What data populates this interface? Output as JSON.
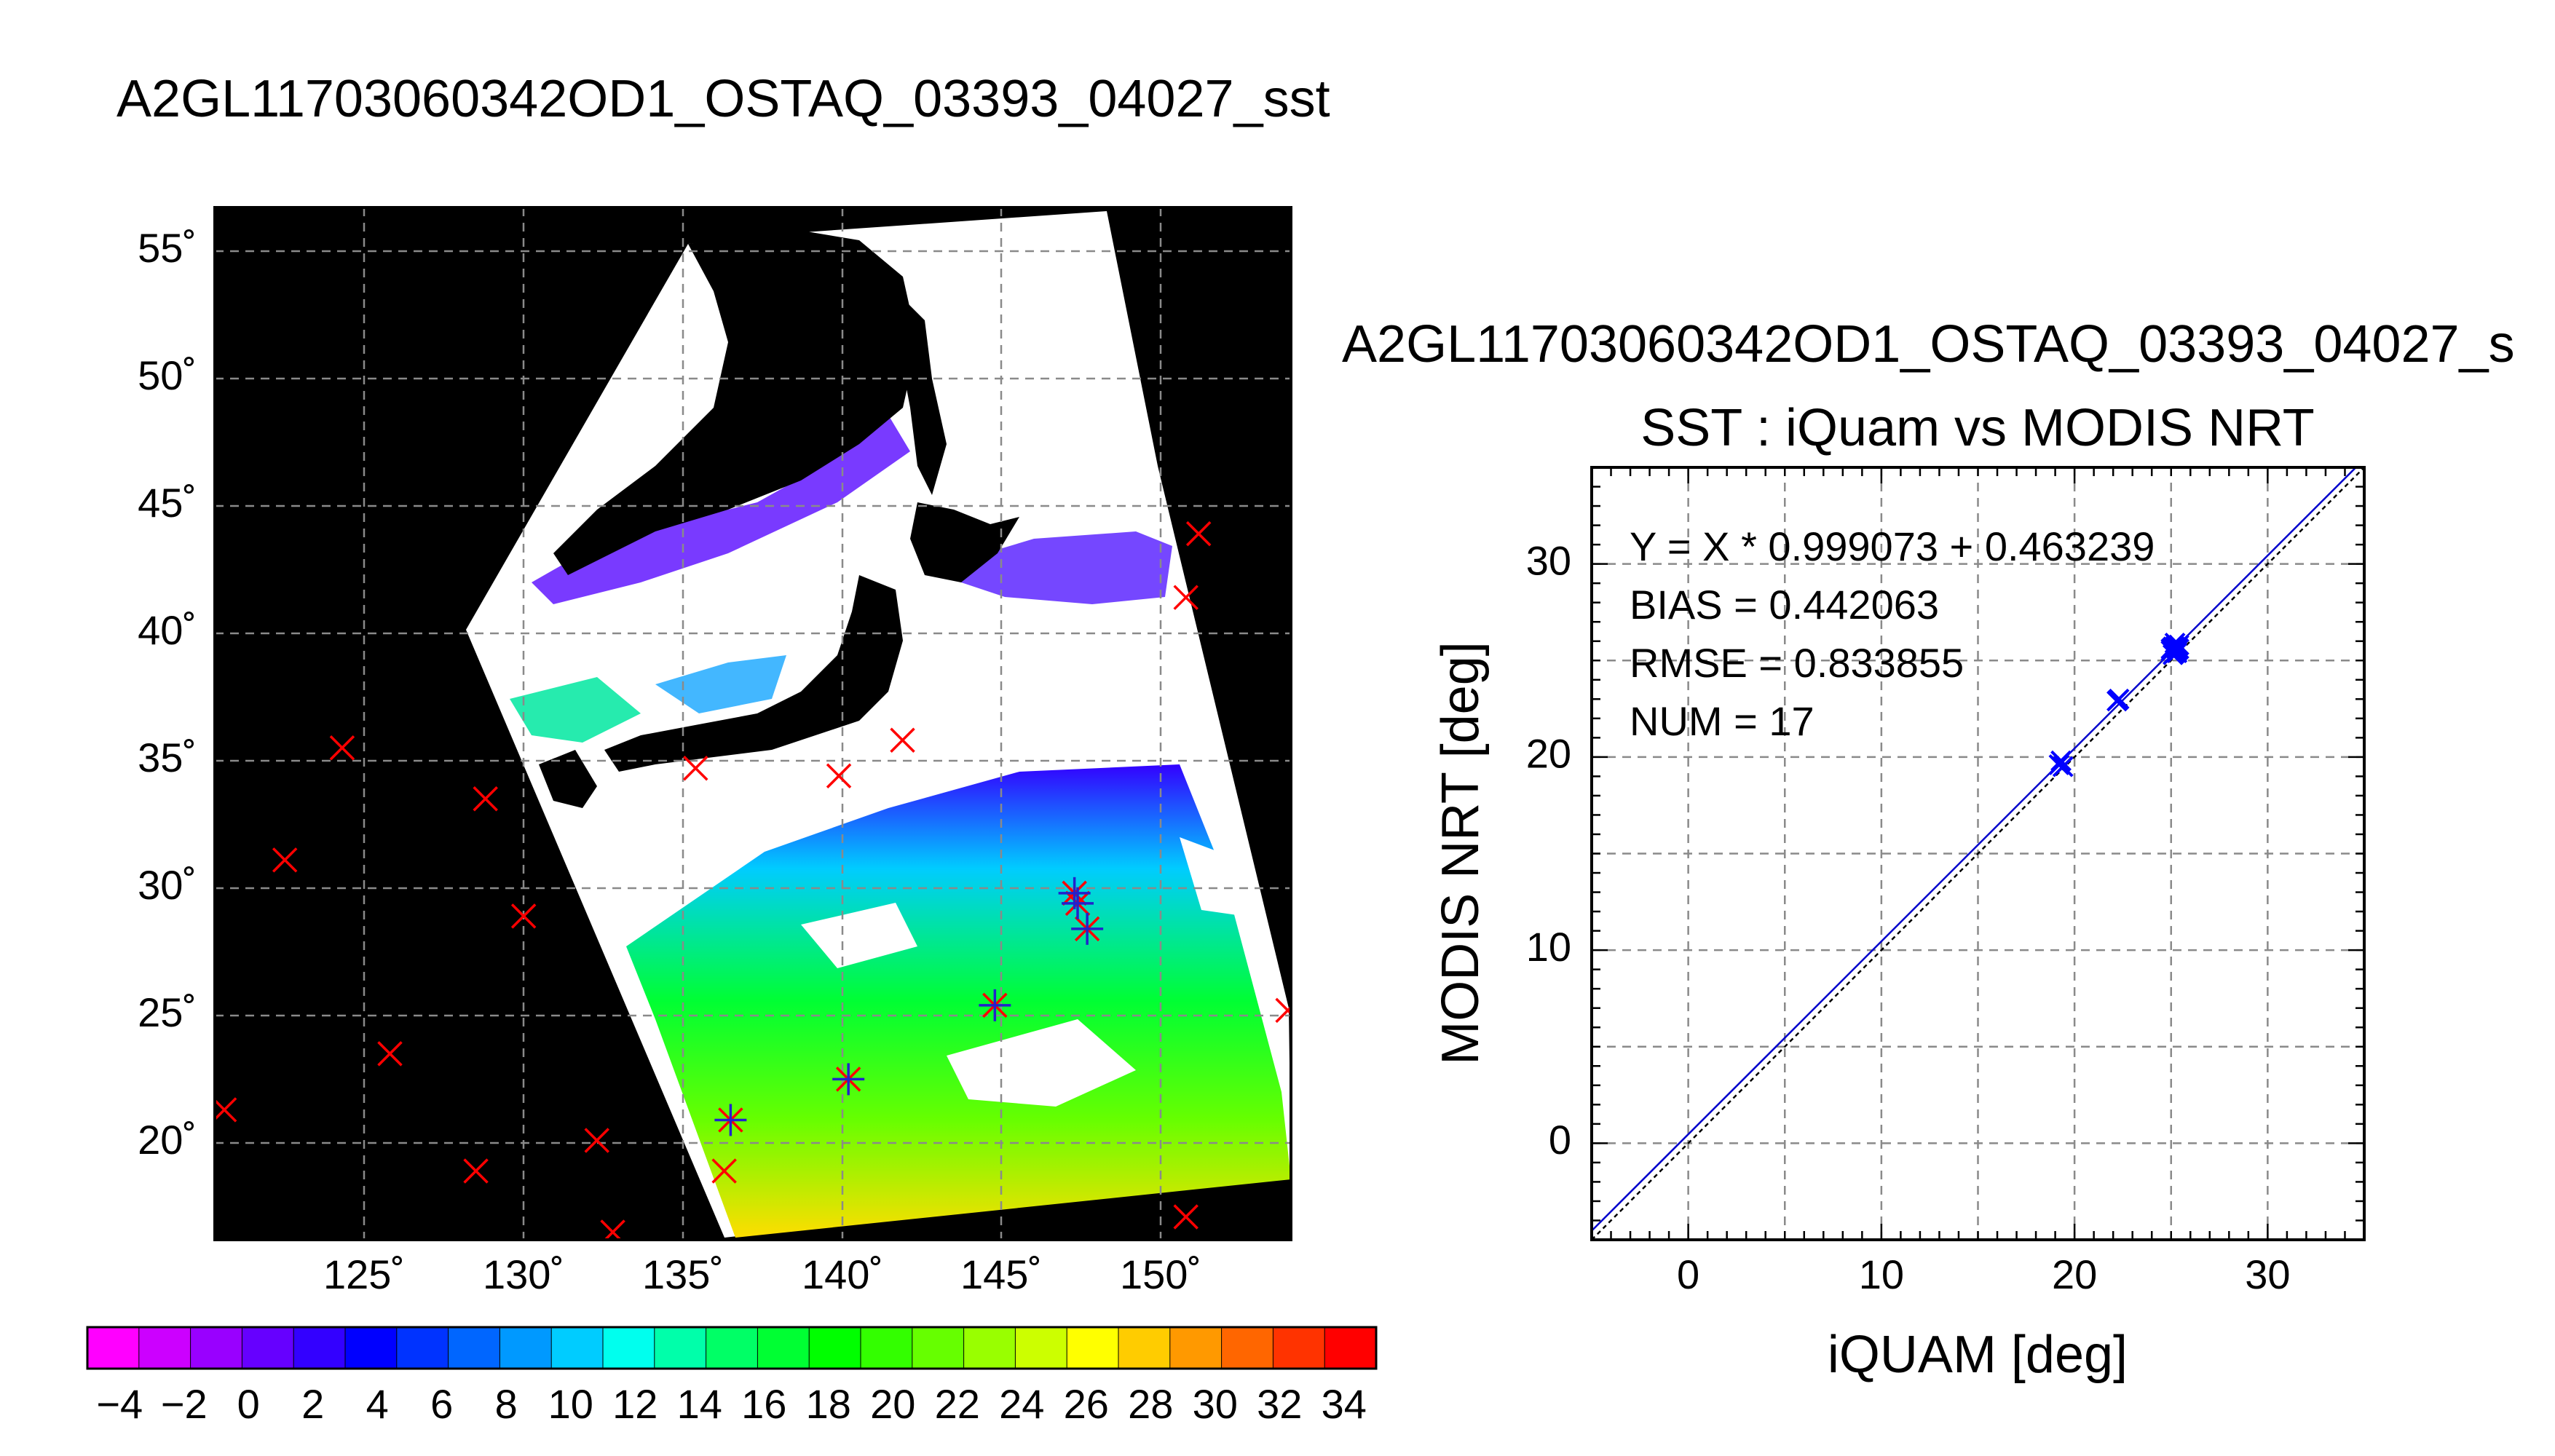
{
  "header": {
    "title": "A2GL11703060342OD1_OSTAQ_03393_04027_sst",
    "scatter_title": "A2GL11703060342OD1_OSTAQ_03393_04027_s"
  },
  "map": {
    "lat_labels": [
      "55˚",
      "50˚",
      "45˚",
      "40˚",
      "35˚",
      "30˚",
      "25˚",
      "20˚"
    ],
    "lon_labels": [
      "125˚",
      "130˚",
      "135˚",
      "140˚",
      "145˚",
      "150˚"
    ],
    "lat_values": [
      55,
      50,
      45,
      40,
      35,
      30,
      25,
      20
    ],
    "lon_values": [
      125,
      130,
      135,
      140,
      145,
      150
    ],
    "lon_range": [
      120.3,
      154.1
    ],
    "lat_range": [
      16.2,
      56.7
    ],
    "marker_color": "#ff0000",
    "match_color": "#2222cc"
  },
  "colorbar": {
    "labels": [
      "−4",
      "−2",
      "0",
      "2",
      "4",
      "6",
      "8",
      "10",
      "12",
      "14",
      "16",
      "18",
      "20",
      "22",
      "24",
      "26",
      "28",
      "30",
      "32",
      "34"
    ],
    "range": [
      -5,
      35
    ],
    "colors": [
      "#ff00ff",
      "#cc00ff",
      "#9900ff",
      "#6600ff",
      "#3300ff",
      "#0000ff",
      "#0033ff",
      "#0066ff",
      "#0099ff",
      "#00ccff",
      "#00ffee",
      "#00ffaa",
      "#00ff66",
      "#00ff33",
      "#00ff00",
      "#33ff00",
      "#66ff00",
      "#99ff00",
      "#ccff00",
      "#ffff00",
      "#ffcc00",
      "#ff9900",
      "#ff6600",
      "#ff3300",
      "#ff0000"
    ]
  },
  "chart_data": [
    {
      "type": "scatter",
      "title": "SST : iQuam vs MODIS NRT",
      "xlabel": "iQUAM [deg]",
      "ylabel": "MODIS NRT [deg]",
      "xlim": [
        -5,
        35
      ],
      "ylim": [
        -5,
        35
      ],
      "xticks": [
        0,
        10,
        20,
        30
      ],
      "yticks": [
        0,
        10,
        20,
        30
      ],
      "grid": true,
      "annotations": [
        "Y = X * 0.999073 + 0.463239",
        "BIAS = 0.442063",
        "RMSE = 0.833855",
        "NUM = 17"
      ],
      "fit": {
        "slope": 0.999073,
        "intercept": 0.463239
      },
      "marker_color": "#0000ff",
      "points": [
        {
          "x": 19.2,
          "y": 19.6
        },
        {
          "x": 19.3,
          "y": 19.8
        },
        {
          "x": 19.4,
          "y": 19.5
        },
        {
          "x": 22.2,
          "y": 22.9
        },
        {
          "x": 22.3,
          "y": 23.0
        },
        {
          "x": 25.0,
          "y": 25.5
        },
        {
          "x": 25.1,
          "y": 25.7
        },
        {
          "x": 25.2,
          "y": 25.4
        },
        {
          "x": 25.2,
          "y": 25.9
        },
        {
          "x": 25.3,
          "y": 25.6
        },
        {
          "x": 25.4,
          "y": 25.8
        },
        {
          "x": 25.1,
          "y": 25.3
        },
        {
          "x": 25.3,
          "y": 25.5
        },
        {
          "x": 25.0,
          "y": 25.6
        },
        {
          "x": 25.4,
          "y": 25.6
        },
        {
          "x": 25.2,
          "y": 25.7
        },
        {
          "x": 25.3,
          "y": 25.4
        }
      ]
    },
    {
      "type": "scatter",
      "title": "A2GL11703060342OD1_OSTAQ_03393_04027_sst",
      "xlabel": "",
      "ylabel": "",
      "xlim": [
        120.3,
        154.1
      ],
      "ylim": [
        16.2,
        56.7
      ],
      "series": [
        {
          "name": "",
          "marker": "x",
          "points": [
            [
              120.6,
              21.3
            ],
            [
              122.5,
              31.1
            ],
            [
              124.3,
              35.5
            ],
            [
              125.8,
              23.5
            ],
            [
              128.5,
              18.9
            ],
            [
              128.8,
              33.5
            ],
            [
              130.0,
              28.9
            ],
            [
              132.3,
              20.1
            ],
            [
              132.8,
              16.5
            ],
            [
              135.4,
              34.7
            ],
            [
              136.3,
              18.9
            ],
            [
              139.9,
              34.4
            ],
            [
              141.9,
              35.8
            ],
            [
              150.8,
              41.4
            ],
            [
              151.2,
              43.9
            ],
            [
              150.8,
              17.1
            ],
            [
              154.0,
              25.2
            ],
            [
              136.5,
              20.9
            ],
            [
              140.2,
              22.5
            ],
            [
              144.8,
              25.4
            ],
            [
              147.3,
              29.8
            ],
            [
              147.4,
              29.4
            ],
            [
              147.7,
              28.4
            ]
          ]
        },
        {
          "name": "",
          "marker": "+",
          "points": [
            [
              136.5,
              20.9
            ],
            [
              140.2,
              22.5
            ],
            [
              144.8,
              25.4
            ],
            [
              147.3,
              29.8
            ],
            [
              147.4,
              29.4
            ],
            [
              147.7,
              28.4
            ]
          ]
        }
      ]
    }
  ]
}
